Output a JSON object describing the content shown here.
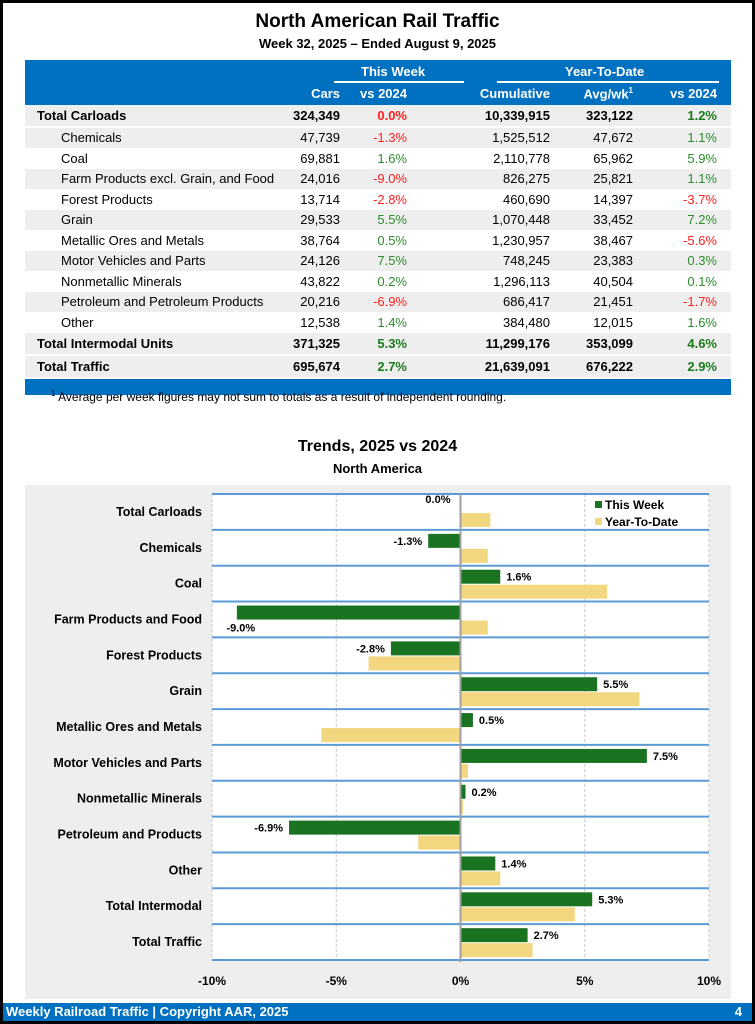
{
  "header": {
    "title": "North American Rail Traffic",
    "subtitle": "Week 32, 2025 – Ended August 9, 2025"
  },
  "table": {
    "group_headers": {
      "this_week": "This Week",
      "ytd": "Year-To-Date"
    },
    "columns": [
      "Cars",
      "vs 2024",
      "Cumulative",
      "Avg/wk",
      "vs 2024"
    ],
    "avg_footnote_mark": "1",
    "rows": [
      {
        "label": "Total Carloads",
        "cars": "324,349",
        "vs": "0.0%",
        "cum": "10,339,915",
        "avg": "323,122",
        "ytdvs": "1.2%",
        "total": true,
        "vs_neg": true,
        "ytd_neg": false
      },
      {
        "label": "Chemicals",
        "cars": "47,739",
        "vs": "-1.3%",
        "cum": "1,525,512",
        "avg": "47,672",
        "ytdvs": "1.1%",
        "vs_neg": true,
        "ytd_neg": false
      },
      {
        "label": "Coal",
        "cars": "69,881",
        "vs": "1.6%",
        "cum": "2,110,778",
        "avg": "65,962",
        "ytdvs": "5.9%",
        "vs_neg": false,
        "ytd_neg": false
      },
      {
        "label": "Farm Products excl. Grain, and Food",
        "cars": "24,016",
        "vs": "-9.0%",
        "cum": "826,275",
        "avg": "25,821",
        "ytdvs": "1.1%",
        "vs_neg": true,
        "ytd_neg": false
      },
      {
        "label": "Forest Products",
        "cars": "13,714",
        "vs": "-2.8%",
        "cum": "460,690",
        "avg": "14,397",
        "ytdvs": "-3.7%",
        "vs_neg": true,
        "ytd_neg": true
      },
      {
        "label": "Grain",
        "cars": "29,533",
        "vs": "5.5%",
        "cum": "1,070,448",
        "avg": "33,452",
        "ytdvs": "7.2%",
        "vs_neg": false,
        "ytd_neg": false
      },
      {
        "label": "Metallic Ores and Metals",
        "cars": "38,764",
        "vs": "0.5%",
        "cum": "1,230,957",
        "avg": "38,467",
        "ytdvs": "-5.6%",
        "vs_neg": false,
        "ytd_neg": true
      },
      {
        "label": "Motor Vehicles and Parts",
        "cars": "24,126",
        "vs": "7.5%",
        "cum": "748,245",
        "avg": "23,383",
        "ytdvs": "0.3%",
        "vs_neg": false,
        "ytd_neg": false
      },
      {
        "label": "Nonmetallic Minerals",
        "cars": "43,822",
        "vs": "0.2%",
        "cum": "1,296,113",
        "avg": "40,504",
        "ytdvs": "0.1%",
        "vs_neg": false,
        "ytd_neg": false
      },
      {
        "label": "Petroleum and Petroleum Products",
        "cars": "20,216",
        "vs": "-6.9%",
        "cum": "686,417",
        "avg": "21,451",
        "ytdvs": "-1.7%",
        "vs_neg": true,
        "ytd_neg": true
      },
      {
        "label": "Other",
        "cars": "12,538",
        "vs": "1.4%",
        "cum": "384,480",
        "avg": "12,015",
        "ytdvs": "1.6%",
        "vs_neg": false,
        "ytd_neg": false
      },
      {
        "label": "Total Intermodal Units",
        "cars": "371,325",
        "vs": "5.3%",
        "cum": "11,299,176",
        "avg": "353,099",
        "ytdvs": "4.6%",
        "total": true,
        "vs_neg": false,
        "ytd_neg": false
      },
      {
        "label": "Total Traffic",
        "cars": "695,674",
        "vs": "2.7%",
        "cum": "21,639,091",
        "avg": "676,222",
        "ytdvs": "2.9%",
        "total": true,
        "vs_neg": false,
        "ytd_neg": false
      }
    ],
    "footnote_mark": "1",
    "footnote": "Average per week figures may not sum to totals as a result of independent rounding."
  },
  "colors": {
    "blue": "#0070c0",
    "green_bar": "#1a7320",
    "ytd_bar": "#f2d680",
    "neg_text": "#ff2020",
    "pos_text": "#2e8b2e"
  },
  "chart_data": {
    "type": "bar",
    "orientation": "horizontal",
    "title": "Trends, 2025 vs 2024",
    "subtitle": "North America",
    "categories": [
      "Total Carloads",
      "Chemicals",
      "Coal",
      "Farm Products and Food",
      "Forest Products",
      "Grain",
      "Metallic Ores and Metals",
      "Motor Vehicles and Parts",
      "Nonmetallic Minerals",
      "Petroleum and Products",
      "Other",
      "Total Intermodal",
      "Total Traffic"
    ],
    "series": [
      {
        "name": "This Week",
        "values": [
          0.0,
          -1.3,
          1.6,
          -9.0,
          -2.8,
          5.5,
          0.5,
          7.5,
          0.2,
          -6.9,
          1.4,
          5.3,
          2.7
        ],
        "labels": [
          "0.0%",
          "-1.3%",
          "1.6%",
          "-9.0%",
          "-2.8%",
          "5.5%",
          "0.5%",
          "7.5%",
          "0.2%",
          "-6.9%",
          "1.4%",
          "5.3%",
          "2.7%"
        ]
      },
      {
        "name": "Year-To-Date",
        "values": [
          1.2,
          1.1,
          5.9,
          1.1,
          -3.7,
          7.2,
          -5.6,
          0.3,
          0.1,
          -1.7,
          1.6,
          4.6,
          2.9
        ]
      }
    ],
    "xlim": [
      -10,
      10
    ],
    "xticks": [
      -10,
      -5,
      0,
      5,
      10
    ],
    "xtick_labels": [
      "-10%",
      "-5%",
      "0%",
      "5%",
      "10%"
    ],
    "grid": true,
    "legend": "top-right"
  },
  "footer": {
    "left": "Weekly Railroad Traffic | Copyright AAR, 2025",
    "page": "4"
  }
}
